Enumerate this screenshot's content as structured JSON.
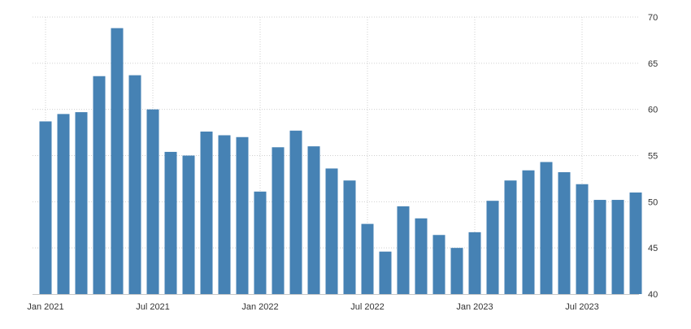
{
  "chart_data": {
    "type": "bar",
    "x": [
      "2021-01",
      "2021-02",
      "2021-03",
      "2021-04",
      "2021-05",
      "2021-06",
      "2021-07",
      "2021-08",
      "2021-09",
      "2021-10",
      "2021-11",
      "2021-12",
      "2022-01",
      "2022-02",
      "2022-03",
      "2022-04",
      "2022-05",
      "2022-06",
      "2022-07",
      "2022-08",
      "2022-09",
      "2022-10",
      "2022-11",
      "2022-12",
      "2023-01",
      "2023-02",
      "2023-03",
      "2023-04",
      "2023-05",
      "2023-06",
      "2023-07",
      "2023-08",
      "2023-09",
      "2023-10"
    ],
    "values": [
      58.7,
      59.5,
      59.7,
      63.6,
      68.8,
      63.7,
      60.0,
      55.4,
      55.0,
      57.6,
      57.2,
      57.0,
      51.1,
      55.9,
      57.7,
      56.0,
      53.6,
      52.3,
      47.6,
      44.6,
      49.5,
      48.2,
      46.4,
      45.0,
      46.7,
      50.1,
      52.3,
      53.4,
      54.3,
      53.2,
      51.9,
      50.2,
      50.2,
      51.0
    ],
    "x_tick_labels": [
      {
        "index": 0,
        "label": "Jan 2021"
      },
      {
        "index": 6,
        "label": "Jul 2021"
      },
      {
        "index": 12,
        "label": "Jan 2022"
      },
      {
        "index": 18,
        "label": "Jul 2022"
      },
      {
        "index": 24,
        "label": "Jan 2023"
      },
      {
        "index": 30,
        "label": "Jul 2023"
      }
    ],
    "y_ticks": [
      40,
      45,
      50,
      55,
      60,
      65,
      70
    ],
    "ylim": [
      40,
      70
    ],
    "title": "",
    "xlabel": "",
    "ylabel": "",
    "grid": true,
    "y_axis_position": "right",
    "bar_color": "#4682b4",
    "grid_color": "#d0d0d0"
  }
}
